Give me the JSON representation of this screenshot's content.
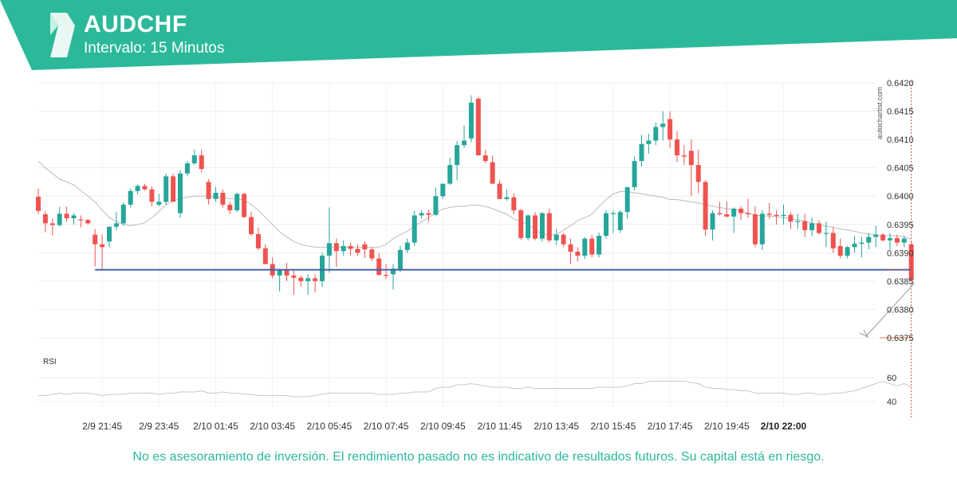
{
  "header": {
    "symbol": "AUDCHF",
    "interval": "Intervalo: 15 Minutos",
    "brand_color": "#2bb99a",
    "logo_icon": "autochartist-logo-icon"
  },
  "watermark": "autochartist.com",
  "disclaimer": "No es asesoramiento de inversión. El rendimiento pasado no es indicativo de resultados futuros. Su capital está en riesgo.",
  "colors": {
    "up": "#26a69a",
    "down": "#ef5350",
    "ma": "#bdbdbd",
    "support": "#3f64a8",
    "target": "#f0915a",
    "vline": "#c0504d",
    "grid": "#ededed"
  },
  "chart_data": [
    {
      "type": "candlestick",
      "title": "AUDCHF",
      "ylim": [
        0.637,
        0.6422
      ],
      "yticks": [
        "0.6420",
        "0.6415",
        "0.6410",
        "0.6405",
        "0.6400",
        "0.6395",
        "0.6390",
        "0.6385",
        "0.6380",
        "0.6375"
      ],
      "xticks": [
        "2/9 21:45",
        "2/9 23:45",
        "2/10 01:45",
        "2/10 03:45",
        "2/10 05:45",
        "2/10 07:45",
        "2/10 09:45",
        "2/10 11:45",
        "2/10 13:45",
        "2/10 15:45",
        "2/10 17:45",
        "2/10 19:45",
        "2/10 22:00"
      ],
      "xtick_index": [
        9,
        17,
        25,
        33,
        41,
        49,
        57,
        65,
        73,
        81,
        89,
        97,
        105
      ],
      "highlight_xtick": "2/10 22:00",
      "support_level": 0.6387,
      "support_start_index": 8,
      "target_level": 0.6375,
      "candles_ohlc": [
        [
          0.63999,
          0.64013,
          0.63968,
          0.63974
        ],
        [
          0.63968,
          0.63974,
          0.63936,
          0.63952
        ],
        [
          0.63952,
          0.6396,
          0.63931,
          0.63949
        ],
        [
          0.63949,
          0.63981,
          0.63946,
          0.63969
        ],
        [
          0.63969,
          0.63982,
          0.63955,
          0.63961
        ],
        [
          0.63961,
          0.6397,
          0.6395,
          0.63966
        ],
        [
          0.63959,
          0.63966,
          0.63945,
          0.63958
        ],
        [
          0.63958,
          0.6396,
          0.6395,
          0.63952
        ],
        [
          0.63932,
          0.63942,
          0.63876,
          0.63915
        ],
        [
          0.63915,
          0.63932,
          0.6387,
          0.6391
        ],
        [
          0.6392,
          0.63946,
          0.6391,
          0.63946
        ],
        [
          0.63946,
          0.63972,
          0.6394,
          0.63952
        ],
        [
          0.63952,
          0.63989,
          0.63948,
          0.63985
        ],
        [
          0.63985,
          0.64013,
          0.6398,
          0.64009
        ],
        [
          0.64009,
          0.64021,
          0.64003,
          0.64018
        ],
        [
          0.64018,
          0.64022,
          0.6401,
          0.64012
        ],
        [
          0.64012,
          0.64018,
          0.63982,
          0.6399
        ],
        [
          0.63985,
          0.64004,
          0.63982,
          0.6399
        ],
        [
          0.6399,
          0.6404,
          0.63985,
          0.64035
        ],
        [
          0.64035,
          0.6404,
          0.63992,
          0.6399
        ],
        [
          0.6397,
          0.64046,
          0.63962,
          0.6404
        ],
        [
          0.6404,
          0.64062,
          0.64035,
          0.64058
        ],
        [
          0.64058,
          0.64082,
          0.64055,
          0.64072
        ],
        [
          0.64072,
          0.64082,
          0.64042,
          0.64048
        ],
        [
          0.64025,
          0.6403,
          0.63985,
          0.63995
        ],
        [
          0.63995,
          0.64016,
          0.6399,
          0.64006
        ],
        [
          0.64006,
          0.64012,
          0.6398,
          0.63985
        ],
        [
          0.63985,
          0.6399,
          0.63968,
          0.63975
        ],
        [
          0.63975,
          0.64006,
          0.63972,
          0.64004
        ],
        [
          0.64004,
          0.64006,
          0.63962,
          0.63963
        ],
        [
          0.63963,
          0.63972,
          0.6393,
          0.63933
        ],
        [
          0.63933,
          0.63945,
          0.63905,
          0.63908
        ],
        [
          0.63908,
          0.63915,
          0.6388,
          0.6388
        ],
        [
          0.6388,
          0.63892,
          0.63855,
          0.6386
        ],
        [
          0.6386,
          0.63872,
          0.63832,
          0.6387
        ],
        [
          0.6387,
          0.63882,
          0.6385,
          0.6386
        ],
        [
          0.6386,
          0.6387,
          0.63826,
          0.63856
        ],
        [
          0.63856,
          0.6386,
          0.6384,
          0.6385
        ],
        [
          0.6385,
          0.63862,
          0.63826,
          0.63855
        ],
        [
          0.63855,
          0.63862,
          0.6383,
          0.6385
        ],
        [
          0.6385,
          0.639,
          0.6384,
          0.63895
        ],
        [
          0.63895,
          0.6398,
          0.63865,
          0.63917
        ],
        [
          0.63917,
          0.63925,
          0.63875,
          0.63903
        ],
        [
          0.63903,
          0.63922,
          0.63895,
          0.63912
        ],
        [
          0.63912,
          0.63918,
          0.63895,
          0.63907
        ],
        [
          0.63907,
          0.63915,
          0.63895,
          0.639
        ],
        [
          0.63915,
          0.6392,
          0.63891,
          0.63906
        ],
        [
          0.63906,
          0.6391,
          0.63885,
          0.6389
        ],
        [
          0.6389,
          0.639,
          0.6386,
          0.63861
        ],
        [
          0.63861,
          0.6388,
          0.63854,
          0.6386
        ],
        [
          0.63862,
          0.6388,
          0.63835,
          0.63872
        ],
        [
          0.6387,
          0.63912,
          0.63866,
          0.63905
        ],
        [
          0.63905,
          0.63925,
          0.639,
          0.63918
        ],
        [
          0.63918,
          0.63974,
          0.63912,
          0.63966
        ],
        [
          0.63966,
          0.63975,
          0.6396,
          0.6397
        ],
        [
          0.6397,
          0.63976,
          0.63955,
          0.63967
        ],
        [
          0.63967,
          0.64015,
          0.63965,
          0.64
        ],
        [
          0.64,
          0.64022,
          0.63995,
          0.64022
        ],
        [
          0.64022,
          0.64068,
          0.6402,
          0.64055
        ],
        [
          0.64055,
          0.64097,
          0.64028,
          0.6409
        ],
        [
          0.6409,
          0.64125,
          0.64085,
          0.64098
        ],
        [
          0.64102,
          0.64178,
          0.64095,
          0.64165
        ],
        [
          0.64172,
          0.64176,
          0.6408,
          0.64072
        ],
        [
          0.64072,
          0.64082,
          0.64058,
          0.64062
        ],
        [
          0.6406,
          0.64072,
          0.64022,
          0.64022
        ],
        [
          0.64022,
          0.64028,
          0.63995,
          0.63995
        ],
        [
          0.63995,
          0.64012,
          0.63992,
          0.63998
        ],
        [
          0.63998,
          0.64005,
          0.63968,
          0.63975
        ],
        [
          0.63975,
          0.63978,
          0.63923,
          0.63926
        ],
        [
          0.63926,
          0.63968,
          0.63922,
          0.63966
        ],
        [
          0.63966,
          0.63972,
          0.63922,
          0.63925
        ],
        [
          0.63925,
          0.63972,
          0.6392,
          0.6397
        ],
        [
          0.6397,
          0.63978,
          0.63918,
          0.63922
        ],
        [
          0.63922,
          0.63942,
          0.63914,
          0.63932
        ],
        [
          0.63932,
          0.63935,
          0.6391,
          0.63915
        ],
        [
          0.63915,
          0.63925,
          0.6388,
          0.63902
        ],
        [
          0.63902,
          0.6391,
          0.63885,
          0.63895
        ],
        [
          0.63895,
          0.63928,
          0.63889,
          0.63925
        ],
        [
          0.63925,
          0.63932,
          0.63892,
          0.63897
        ],
        [
          0.63897,
          0.63936,
          0.63892,
          0.6393
        ],
        [
          0.6393,
          0.63975,
          0.63925,
          0.6397
        ],
        [
          0.6397,
          0.63975,
          0.63935,
          0.6397
        ],
        [
          0.6394,
          0.63975,
          0.63935,
          0.63972
        ],
        [
          0.63972,
          0.64012,
          0.6396,
          0.64016
        ],
        [
          0.64016,
          0.6407,
          0.6401,
          0.64062
        ],
        [
          0.64062,
          0.64108,
          0.64052,
          0.64092
        ],
        [
          0.64092,
          0.6411,
          0.64075,
          0.64098
        ],
        [
          0.64098,
          0.6413,
          0.6409,
          0.64122
        ],
        [
          0.64122,
          0.6415,
          0.64098,
          0.64128
        ],
        [
          0.64136,
          0.6415,
          0.64085,
          0.641
        ],
        [
          0.641,
          0.64115,
          0.6406,
          0.64072
        ],
        [
          0.64072,
          0.6409,
          0.64055,
          0.6407
        ],
        [
          0.6408,
          0.641,
          0.64,
          0.64055
        ],
        [
          0.64055,
          0.64082,
          0.64005,
          0.64025
        ],
        [
          0.64025,
          0.64028,
          0.6393,
          0.63941
        ],
        [
          0.63941,
          0.63975,
          0.63922,
          0.6397
        ],
        [
          0.6397,
          0.6399,
          0.63966,
          0.63968
        ],
        [
          0.63968,
          0.6399,
          0.63962,
          0.63964
        ],
        [
          0.63964,
          0.6398,
          0.63935,
          0.63978
        ],
        [
          0.63978,
          0.63982,
          0.63958,
          0.6397
        ],
        [
          0.6397,
          0.63995,
          0.63962,
          0.63968
        ],
        [
          0.63968,
          0.63982,
          0.6391,
          0.63915
        ],
        [
          0.63915,
          0.63975,
          0.63905,
          0.63969
        ],
        [
          0.63969,
          0.63988,
          0.6396,
          0.63967
        ],
        [
          0.63967,
          0.63975,
          0.6395,
          0.63965
        ],
        [
          0.63965,
          0.63985,
          0.6395,
          0.63967
        ],
        [
          0.63967,
          0.63972,
          0.63942,
          0.63955
        ],
        [
          0.63955,
          0.63969,
          0.63942,
          0.63956
        ],
        [
          0.63956,
          0.63969,
          0.63928,
          0.6394
        ],
        [
          0.6394,
          0.63962,
          0.6393,
          0.63952
        ],
        [
          0.63952,
          0.63958,
          0.63932,
          0.63935
        ],
        [
          0.63935,
          0.63955,
          0.6391,
          0.63935
        ],
        [
          0.63935,
          0.63945,
          0.639,
          0.63908
        ],
        [
          0.63912,
          0.63925,
          0.6389,
          0.63895
        ],
        [
          0.63895,
          0.63912,
          0.6389,
          0.6391
        ],
        [
          0.6391,
          0.6393,
          0.639,
          0.63916
        ],
        [
          0.63916,
          0.63928,
          0.63892,
          0.63918
        ],
        [
          0.63918,
          0.63935,
          0.63906,
          0.63928
        ],
        [
          0.63928,
          0.63948,
          0.6391,
          0.63932
        ],
        [
          0.63932,
          0.63935,
          0.6392,
          0.63922
        ],
        [
          0.63922,
          0.63935,
          0.63906,
          0.63926
        ],
        [
          0.63926,
          0.63932,
          0.63912,
          0.63918
        ],
        [
          0.63918,
          0.6393,
          0.6391,
          0.63925
        ],
        [
          0.63915,
          0.63919,
          0.63852,
          0.63852
        ]
      ],
      "moving_average": [
        0.64062,
        0.6405,
        0.6404,
        0.6403,
        0.64025,
        0.6402,
        0.6401,
        0.64,
        0.6399,
        0.63975,
        0.63962,
        0.63955,
        0.6395,
        0.63948,
        0.6395,
        0.63953,
        0.63962,
        0.63973,
        0.63985,
        0.63992,
        0.63995,
        0.63998,
        0.64,
        0.64,
        0.64,
        0.63998,
        0.63997,
        0.63996,
        0.63995,
        0.63993,
        0.63985,
        0.63975,
        0.63962,
        0.6395,
        0.63937,
        0.63928,
        0.6392,
        0.63915,
        0.63912,
        0.6391,
        0.6391,
        0.6391,
        0.6391,
        0.6391,
        0.6391,
        0.6391,
        0.6391,
        0.6391,
        0.6391,
        0.63915,
        0.63925,
        0.63932,
        0.63938,
        0.63947,
        0.63955,
        0.63962,
        0.6397,
        0.63977,
        0.6398,
        0.63982,
        0.63982,
        0.63984,
        0.63984,
        0.63982,
        0.63978,
        0.63973,
        0.63968,
        0.6396,
        0.63955,
        0.6395,
        0.63942,
        0.63932,
        0.63932,
        0.63932,
        0.6394,
        0.63948,
        0.63957,
        0.63962,
        0.63968,
        0.63982,
        0.63994,
        0.64004,
        0.64008,
        0.64008,
        0.64006,
        0.64004,
        0.64002,
        0.64,
        0.63998,
        0.63994,
        0.63994,
        0.63992,
        0.6399,
        0.63988,
        0.63985,
        0.63982,
        0.6398,
        0.63978,
        0.63976,
        0.63974,
        0.6397,
        0.63967,
        0.63965,
        0.63965,
        0.63964,
        0.63962,
        0.6396,
        0.63958,
        0.63956,
        0.63952,
        0.6395,
        0.63947,
        0.63945,
        0.63942,
        0.6394,
        0.63938,
        0.63935,
        0.63933,
        0.63932,
        0.6393,
        0.6393,
        0.6393,
        0.63928,
        0.63924
      ]
    },
    {
      "type": "line",
      "title": "RSI",
      "ylim": [
        34,
        70
      ],
      "yticks": [
        60,
        40
      ],
      "values": [
        45,
        45,
        46,
        47,
        46,
        47,
        47,
        47,
        46,
        45,
        46,
        46,
        46,
        47,
        47,
        47,
        47,
        46,
        47,
        47,
        48,
        48,
        48,
        49,
        47,
        47,
        48,
        47,
        47,
        46,
        46,
        45,
        45,
        45,
        45,
        45,
        44,
        44,
        44,
        45,
        46,
        47,
        47,
        47,
        47,
        47,
        47,
        47,
        46,
        46,
        46,
        47,
        47,
        48,
        48,
        48,
        51,
        52,
        52,
        54,
        54,
        55,
        54,
        53,
        52,
        52,
        52,
        51,
        51,
        52,
        51,
        51,
        51,
        51,
        51,
        51,
        51,
        51,
        51,
        52,
        52,
        52,
        52,
        53,
        55,
        55,
        57,
        57,
        57,
        57,
        57,
        57,
        56,
        55,
        52,
        51,
        51,
        50,
        50,
        49,
        49,
        47,
        47,
        47,
        47,
        47,
        46,
        46,
        47,
        47,
        46,
        46,
        47,
        47,
        48,
        49,
        51,
        53,
        55,
        57,
        55,
        53,
        55,
        52
      ]
    }
  ]
}
